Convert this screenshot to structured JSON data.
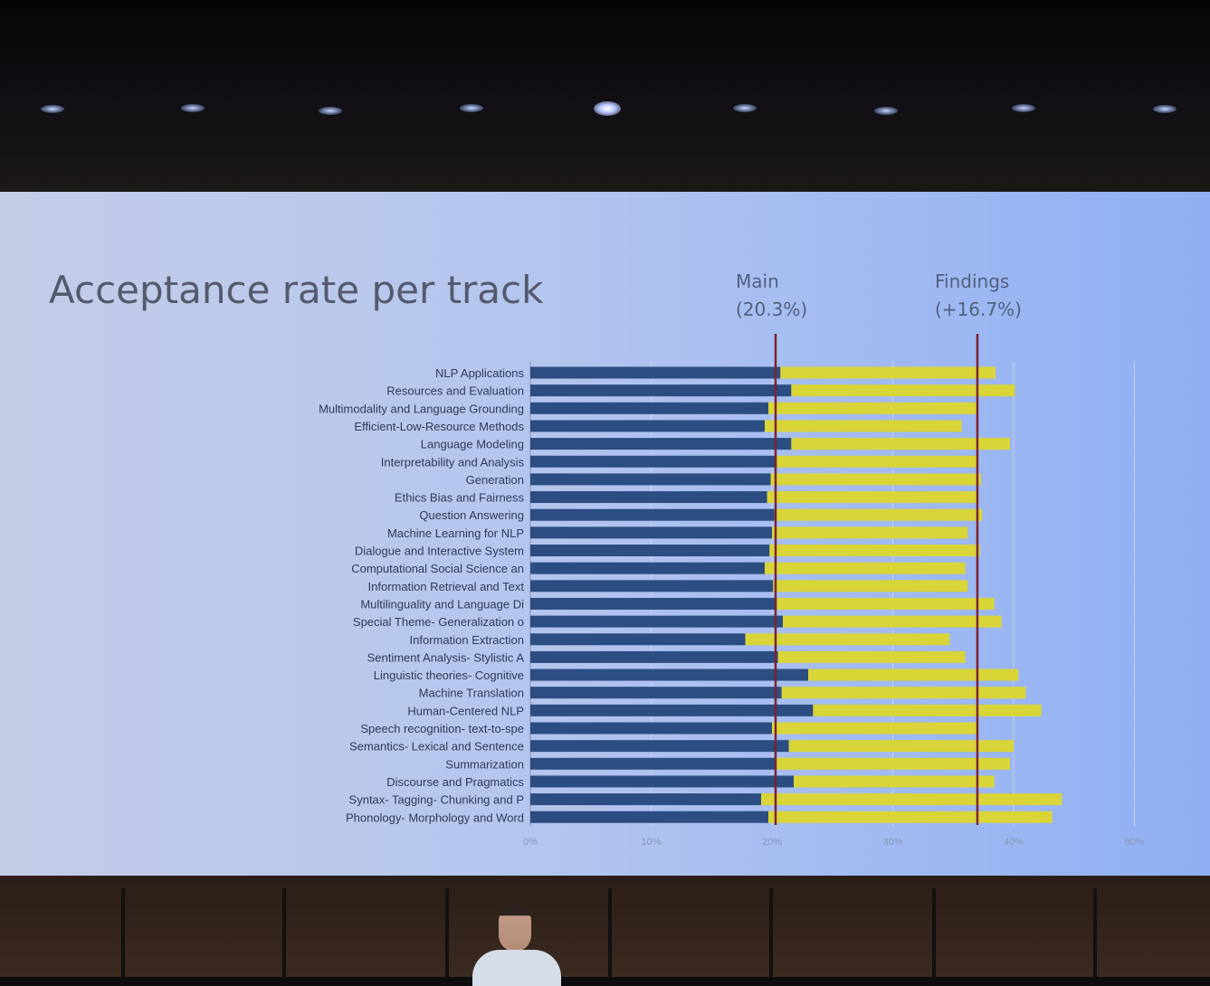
{
  "slide": {
    "title": "Acceptance rate per track",
    "ref_main": {
      "label": "Main",
      "value_text": "(20.3%)"
    },
    "ref_findings": {
      "label": "Findings",
      "value_text": "(+16.7%)"
    }
  },
  "colors": {
    "main_bar": "#2b4d82",
    "findings_bar": "#d9d437",
    "ref_line": "#7a2430",
    "grid": "#c6d0e4"
  },
  "chart_data": {
    "type": "bar",
    "orientation": "horizontal",
    "stacked": true,
    "title": "Acceptance rate per track",
    "xlim": [
      0,
      50
    ],
    "ticks": [
      "0%",
      "10%",
      "20%",
      "30%",
      "40%",
      "50%"
    ],
    "reference_lines": [
      {
        "label": "Main (20.3%)",
        "value": 20.3
      },
      {
        "label": "Findings (+16.7%)",
        "value": 37.0
      }
    ],
    "categories": [
      "NLP Applications",
      "Resources and Evaluation",
      "Multimodality and Language Grounding",
      "Efficient-Low-Resource Methods",
      "Language Modeling",
      "Interpretability and Analysis",
      "Generation",
      "Ethics Bias and Fairness",
      "Question Answering",
      "Machine Learning for NLP",
      "Dialogue and Interactive System",
      "Computational Social Science an",
      "Information Retrieval and Text",
      "Multilinguality and Language Di",
      "Special Theme- Generalization o",
      "Information Extraction",
      "Sentiment Analysis- Stylistic A",
      "Linguistic theories- Cognitive",
      "Machine Translation",
      "Human-Centered NLP",
      "Speech recognition- text-to-spe",
      "Semantics- Lexical and Sentence",
      "Summarization",
      "Discourse and Pragmatics",
      "Syntax- Tagging- Chunking and P",
      "Phonology- Morphology and Word"
    ],
    "series": [
      {
        "name": "Main",
        "values": [
          20.7,
          21.6,
          19.7,
          19.4,
          21.6,
          20.4,
          19.9,
          19.6,
          20.2,
          20.0,
          19.8,
          19.4,
          20.1,
          20.4,
          20.9,
          17.8,
          20.5,
          23.0,
          20.8,
          23.4,
          20.0,
          21.4,
          20.3,
          21.8,
          19.1,
          19.7
        ]
      },
      {
        "name": "Findings",
        "values": [
          17.8,
          18.5,
          17.3,
          16.3,
          18.1,
          16.6,
          17.4,
          17.5,
          17.2,
          16.2,
          17.4,
          16.6,
          16.1,
          18.0,
          18.1,
          16.9,
          15.5,
          17.4,
          20.2,
          18.9,
          17.1,
          18.6,
          19.4,
          16.6,
          24.9,
          23.5
        ]
      }
    ]
  }
}
